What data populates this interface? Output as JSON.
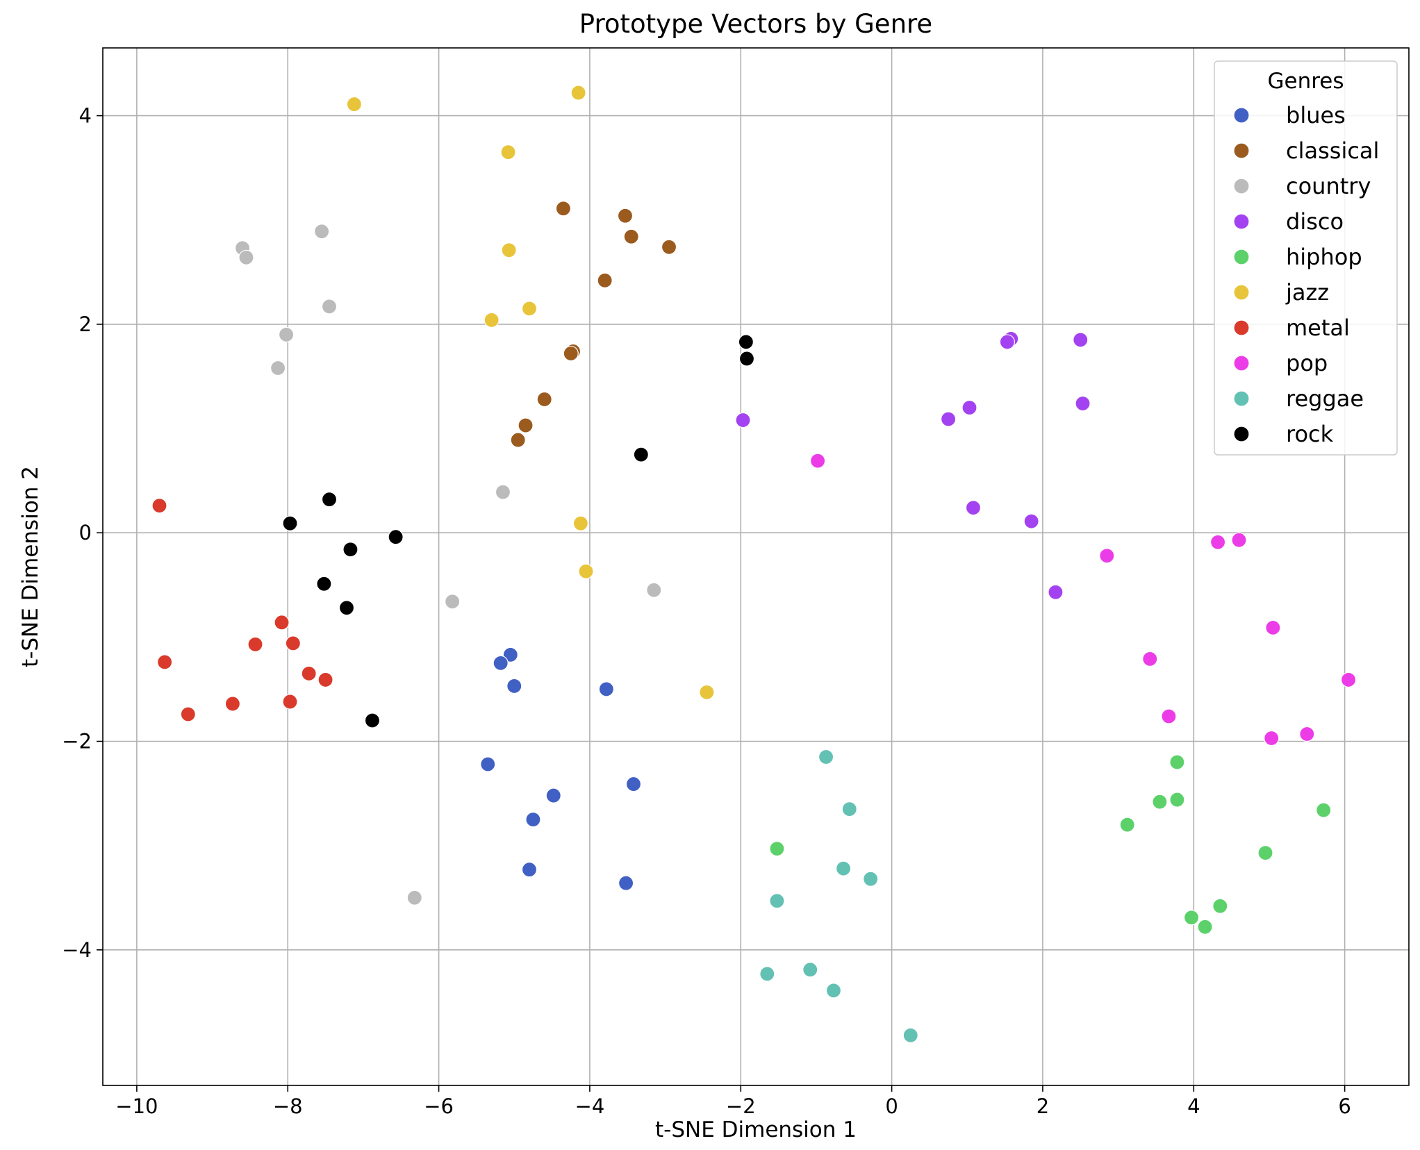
{
  "chart_data": {
    "type": "scatter",
    "title": "Prototype Vectors by Genre",
    "xlabel": "t-SNE Dimension 1",
    "ylabel": "t-SNE Dimension 2",
    "xlim": [
      -10.45,
      6.85
    ],
    "ylim": [
      -5.3,
      4.65
    ],
    "xticks": [
      -10,
      -8,
      -6,
      -4,
      -2,
      0,
      2,
      4,
      6
    ],
    "yticks": [
      -4,
      -2,
      0,
      2,
      4
    ],
    "xtick_labels": [
      "−10",
      "−8",
      "−6",
      "−4",
      "−2",
      "0",
      "2",
      "4",
      "6"
    ],
    "ytick_labels": [
      "−4",
      "−2",
      "0",
      "2",
      "4"
    ],
    "grid": true,
    "legend": {
      "title": "Genres",
      "placement": "top-right"
    },
    "series": [
      {
        "name": "blues",
        "color": "#4060c4",
        "points": [
          [
            -5.05,
            -1.17
          ],
          [
            -5.18,
            -1.25
          ],
          [
            -5.0,
            -1.47
          ],
          [
            -3.78,
            -1.5
          ],
          [
            -5.35,
            -2.22
          ],
          [
            -3.42,
            -2.41
          ],
          [
            -4.48,
            -2.52
          ],
          [
            -4.75,
            -2.75
          ],
          [
            -4.8,
            -3.23
          ],
          [
            -3.52,
            -3.36
          ]
        ]
      },
      {
        "name": "classical",
        "color": "#9b5a1e",
        "points": [
          [
            -4.35,
            3.11
          ],
          [
            -3.53,
            3.04
          ],
          [
            -3.45,
            2.84
          ],
          [
            -2.95,
            2.74
          ],
          [
            -3.8,
            2.42
          ],
          [
            -4.22,
            1.74
          ],
          [
            -4.25,
            1.72
          ],
          [
            -4.6,
            1.28
          ],
          [
            -4.85,
            1.03
          ],
          [
            -4.95,
            0.89
          ]
        ]
      },
      {
        "name": "country",
        "color": "#bbbbbb",
        "points": [
          [
            -8.6,
            2.73
          ],
          [
            -8.55,
            2.64
          ],
          [
            -7.55,
            2.89
          ],
          [
            -7.45,
            2.17
          ],
          [
            -8.02,
            1.9
          ],
          [
            -8.13,
            1.58
          ],
          [
            -5.15,
            0.39
          ],
          [
            -5.82,
            -0.66
          ],
          [
            -3.15,
            -0.55
          ],
          [
            -6.32,
            -3.5
          ]
        ]
      },
      {
        "name": "disco",
        "color": "#a342f0",
        "points": [
          [
            1.58,
            1.86
          ],
          [
            1.53,
            1.83
          ],
          [
            2.5,
            1.85
          ],
          [
            2.53,
            1.24
          ],
          [
            1.03,
            1.2
          ],
          [
            0.75,
            1.09
          ],
          [
            -1.97,
            1.08
          ],
          [
            1.08,
            0.24
          ],
          [
            1.85,
            0.11
          ],
          [
            2.17,
            -0.57
          ]
        ]
      },
      {
        "name": "hiphop",
        "color": "#5cd16a",
        "points": [
          [
            3.78,
            -2.2
          ],
          [
            3.55,
            -2.58
          ],
          [
            3.78,
            -2.56
          ],
          [
            5.72,
            -2.66
          ],
          [
            3.12,
            -2.8
          ],
          [
            4.95,
            -3.07
          ],
          [
            -1.52,
            -3.03
          ],
          [
            4.35,
            -3.58
          ],
          [
            3.97,
            -3.69
          ],
          [
            4.15,
            -3.78
          ]
        ]
      },
      {
        "name": "jazz",
        "color": "#e8c43a",
        "points": [
          [
            -7.12,
            4.11
          ],
          [
            -4.15,
            4.22
          ],
          [
            -5.08,
            3.65
          ],
          [
            -5.07,
            2.71
          ],
          [
            -4.8,
            2.15
          ],
          [
            -5.3,
            2.04
          ],
          [
            -4.12,
            0.09
          ],
          [
            -4.05,
            -0.37
          ],
          [
            -2.45,
            -1.53
          ]
        ]
      },
      {
        "name": "metal",
        "color": "#d93a2b",
        "points": [
          [
            -9.7,
            0.26
          ],
          [
            -8.08,
            -0.86
          ],
          [
            -7.93,
            -1.06
          ],
          [
            -8.43,
            -1.07
          ],
          [
            -9.63,
            -1.24
          ],
          [
            -7.72,
            -1.35
          ],
          [
            -7.5,
            -1.41
          ],
          [
            -8.73,
            -1.64
          ],
          [
            -7.97,
            -1.62
          ],
          [
            -9.32,
            -1.74
          ]
        ]
      },
      {
        "name": "pop",
        "color": "#ec3ce8",
        "points": [
          [
            -0.98,
            0.69
          ],
          [
            4.6,
            -0.07
          ],
          [
            4.32,
            -0.09
          ],
          [
            2.85,
            -0.22
          ],
          [
            5.05,
            -0.91
          ],
          [
            3.42,
            -1.21
          ],
          [
            6.05,
            -1.41
          ],
          [
            3.67,
            -1.76
          ],
          [
            5.5,
            -1.93
          ],
          [
            5.03,
            -1.97
          ]
        ]
      },
      {
        "name": "reggae",
        "color": "#63c1b4",
        "points": [
          [
            -0.87,
            -2.15
          ],
          [
            -0.56,
            -2.65
          ],
          [
            -0.64,
            -3.22
          ],
          [
            -0.28,
            -3.32
          ],
          [
            -1.52,
            -3.53
          ],
          [
            -1.08,
            -4.19
          ],
          [
            -1.65,
            -4.23
          ],
          [
            -0.77,
            -4.39
          ],
          [
            0.25,
            -4.82
          ]
        ]
      },
      {
        "name": "rock",
        "color": "#000000",
        "points": [
          [
            -1.93,
            1.83
          ],
          [
            -1.92,
            1.67
          ],
          [
            -3.32,
            0.75
          ],
          [
            -7.45,
            0.32
          ],
          [
            -7.97,
            0.09
          ],
          [
            -6.57,
            -0.04
          ],
          [
            -7.17,
            -0.16
          ],
          [
            -7.52,
            -0.49
          ],
          [
            -7.22,
            -0.72
          ],
          [
            -6.88,
            -1.8
          ]
        ]
      }
    ]
  }
}
